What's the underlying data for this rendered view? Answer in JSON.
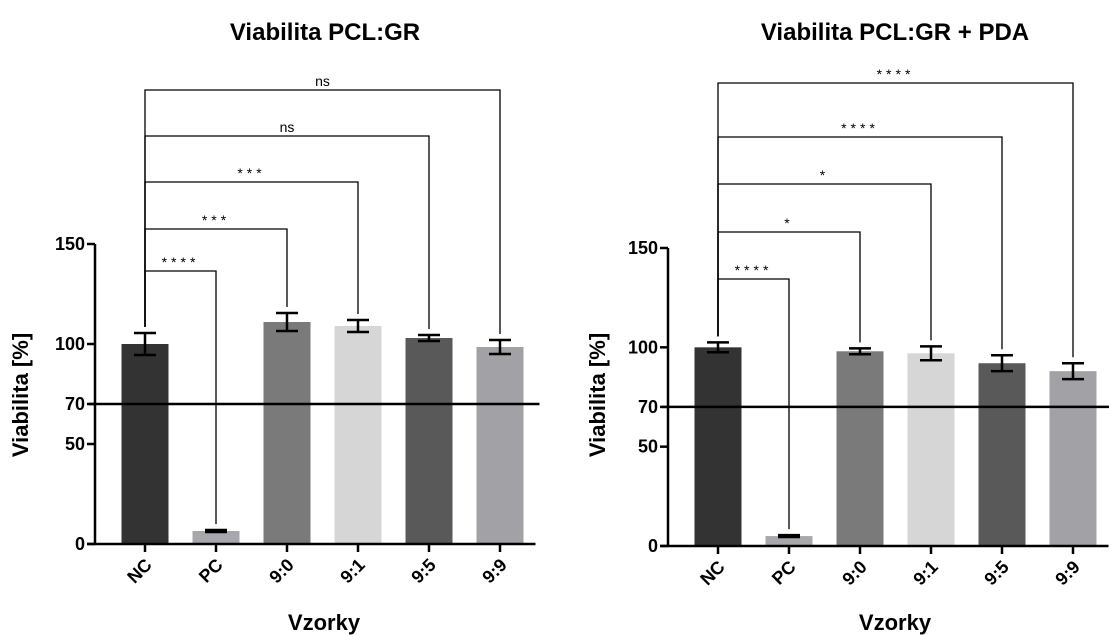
{
  "chart_data": [
    {
      "type": "bar",
      "title": "Viabilita PCL:GR",
      "xlabel": "Vzorky",
      "ylabel": "Viabilita [%]",
      "ylim": [
        0,
        150
      ],
      "yticks": [
        0,
        50,
        70,
        100,
        150
      ],
      "reference_line": 70,
      "categories": [
        "NC",
        "PC",
        "9:0",
        "9:1",
        "9:5",
        "9:9"
      ],
      "values": [
        100,
        6.5,
        111,
        109,
        103,
        98.5
      ],
      "errors": [
        5.5,
        0.5,
        4.5,
        3,
        1.5,
        3.5
      ],
      "bar_colors": [
        "#333333",
        "#a8a8ac",
        "#7a7a7a",
        "#d6d6d6",
        "#595959",
        "#a1a1a6"
      ],
      "comparisons": [
        {
          "from": "NC",
          "to": "PC",
          "label": "****"
        },
        {
          "from": "NC",
          "to": "9:0",
          "label": "***"
        },
        {
          "from": "NC",
          "to": "9:1",
          "label": "***"
        },
        {
          "from": "NC",
          "to": "9:5",
          "label": "ns"
        },
        {
          "from": "NC",
          "to": "9:9",
          "label": "ns"
        }
      ]
    },
    {
      "type": "bar",
      "title": "Viabilita PCL:GR + PDA",
      "xlabel": "Vzorky",
      "ylabel": "Viabilita [%]",
      "ylim": [
        0,
        150
      ],
      "yticks": [
        0,
        50,
        70,
        100,
        150
      ],
      "reference_line": 70,
      "categories": [
        "NC",
        "PC",
        "9:0",
        "9:1",
        "9:5",
        "9:9"
      ],
      "values": [
        100,
        5,
        98,
        97,
        92,
        88
      ],
      "errors": [
        2.5,
        0.5,
        1.5,
        3.5,
        4,
        4
      ],
      "bar_colors": [
        "#333333",
        "#a8a8ac",
        "#7a7a7a",
        "#d6d6d6",
        "#595959",
        "#a1a1a6"
      ],
      "comparisons": [
        {
          "from": "NC",
          "to": "PC",
          "label": "****"
        },
        {
          "from": "NC",
          "to": "9:0",
          "label": "*"
        },
        {
          "from": "NC",
          "to": "9:1",
          "label": "*"
        },
        {
          "from": "NC",
          "to": "9:5",
          "label": "****"
        },
        {
          "from": "NC",
          "to": "9:9",
          "label": "****"
        }
      ]
    }
  ]
}
